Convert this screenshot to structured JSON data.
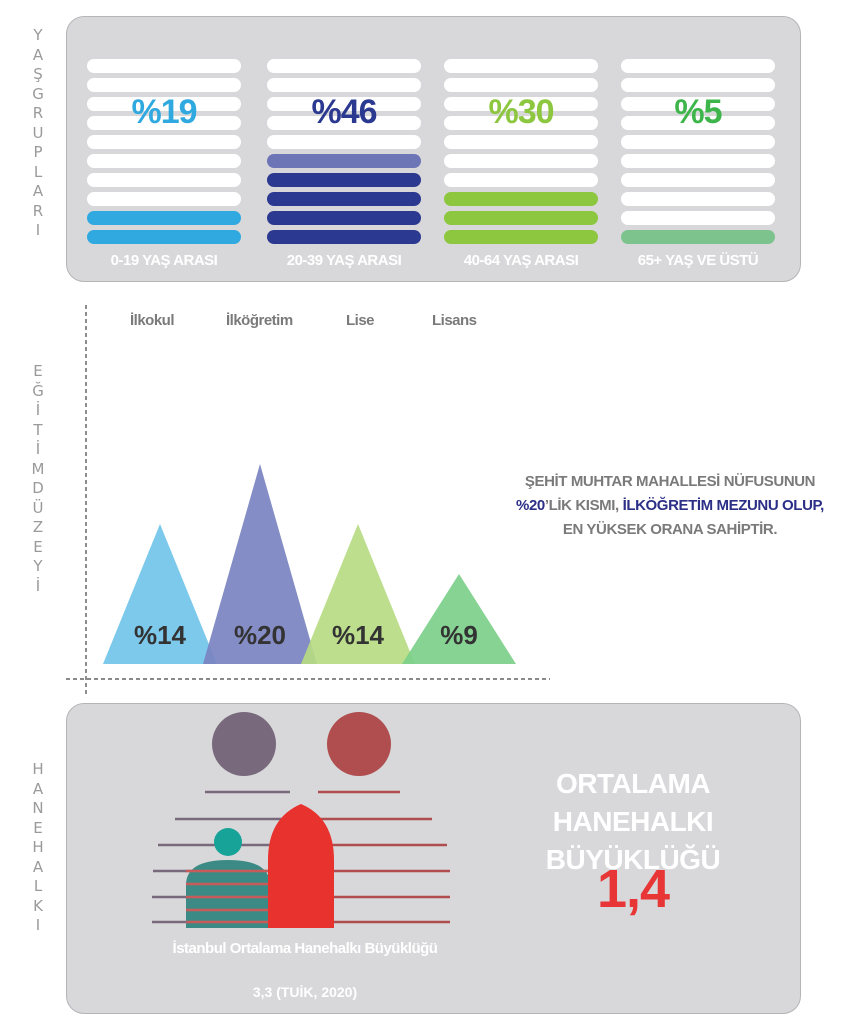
{
  "side_labels": {
    "age": [
      "Y",
      "A",
      "Ş",
      "G",
      "R",
      "U",
      "P",
      "L",
      "A",
      "R",
      "I"
    ],
    "education": [
      "E",
      "Ğ",
      "İ",
      "T",
      "İ",
      "M",
      "D",
      "Ü",
      "Z",
      "E",
      "Y",
      "İ"
    ],
    "household": [
      "H",
      "A",
      "N",
      "E",
      "H",
      "A",
      "L",
      "K",
      "I"
    ]
  },
  "colors": {
    "age_0_19": "#2fa9df",
    "age_20_39": "#2b3990",
    "age_20_39_light": "#6e75b6",
    "age_40_64": "#8dc63f",
    "age_65": "#3db54a",
    "age_65_bar": "#7cc38d",
    "panel": "#d8d8da",
    "ilkokul": "#71c4ea",
    "ilkogretim": "#7a83c0",
    "lise": "#b7db82",
    "lisans": "#7ccf8a",
    "highlight": "#2b2f86",
    "red": "#e83535"
  },
  "chart_data": [
    {
      "type": "bar",
      "title": "",
      "categories": [
        "0-19 YAŞ ARASI",
        "20-39 YAŞ ARASI",
        "40-64 YAŞ ARASI",
        "65+ YAŞ VE ÜSTÜ"
      ],
      "values": [
        19,
        46,
        30,
        5
      ],
      "labels": [
        "%19",
        "%46",
        "%30",
        "%5"
      ],
      "unit": "%"
    },
    {
      "type": "area",
      "title": "",
      "categories": [
        "İlkokul",
        "İlköğretim",
        "Lise",
        "Lisans"
      ],
      "values": [
        14,
        20,
        14,
        9
      ],
      "labels": [
        "%14",
        "%20",
        "%14",
        "%9"
      ],
      "unit": "%"
    }
  ],
  "statement": {
    "line1": "ŞEHİT MUHTAR MAHALLESİ NÜFUSUNUN",
    "line2_pct": "%20",
    "line2_mid": "’LİK KISMI, ",
    "line2_hl": "İLKÖĞRETİM MEZUNU OLUP,",
    "line3": "EN YÜKSEK ORANA SAHİPTİR."
  },
  "household": {
    "title_line1": "ORTALAMA HANEHALKI",
    "title_line2": "BÜYÜKLÜĞÜ",
    "value": "1,4",
    "istanbul_title": "İstanbul Ortalama Hanehalkı Büyüklüğü",
    "istanbul_sub": "3,3 (TUİK, 2020)"
  }
}
